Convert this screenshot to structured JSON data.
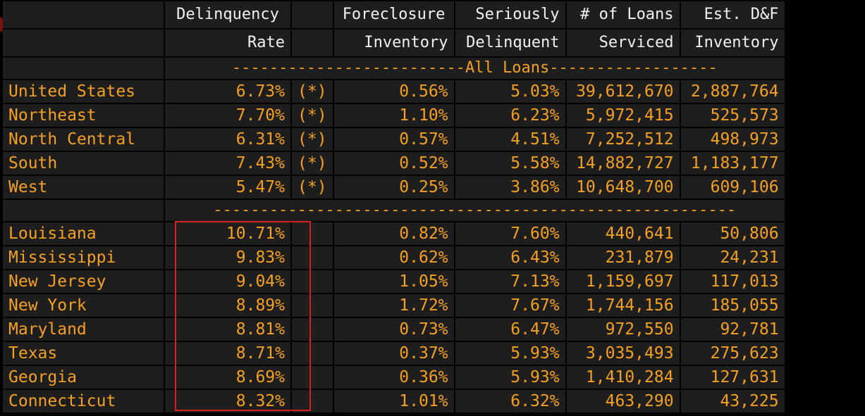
{
  "headers": {
    "col1_line1": "Delinquency",
    "col1_line2": "Rate",
    "col3_line1": "Foreclosure",
    "col3_line2": "Inventory",
    "col4_line1": "Seriously",
    "col4_line2": "Delinquent",
    "col5_line1": "# of Loans",
    "col5_line2": "Serviced",
    "col6_line1": "Est. D&F",
    "col6_line2": "Inventory"
  },
  "section_all_loans": "-------------------------All Loans------------------",
  "section_states": "--------------------------------------------------------",
  "regions": [
    {
      "name": "United States",
      "delinquency_rate": "6.73%",
      "flag": "(*)",
      "foreclosure_inventory": "0.56%",
      "seriously_delinquent": "5.03%",
      "loans_serviced": "39,612,670",
      "est_df_inventory": "2,887,764"
    },
    {
      "name": "Northeast",
      "delinquency_rate": "7.70%",
      "flag": "(*)",
      "foreclosure_inventory": "1.10%",
      "seriously_delinquent": "6.23%",
      "loans_serviced": "5,972,415",
      "est_df_inventory": "525,573"
    },
    {
      "name": "North Central",
      "delinquency_rate": "6.31%",
      "flag": "(*)",
      "foreclosure_inventory": "0.57%",
      "seriously_delinquent": "4.51%",
      "loans_serviced": "7,252,512",
      "est_df_inventory": "498,973"
    },
    {
      "name": "South",
      "delinquency_rate": "7.43%",
      "flag": "(*)",
      "foreclosure_inventory": "0.52%",
      "seriously_delinquent": "5.58%",
      "loans_serviced": "14,882,727",
      "est_df_inventory": "1,183,177"
    },
    {
      "name": "West",
      "delinquency_rate": "5.47%",
      "flag": "(*)",
      "foreclosure_inventory": "0.25%",
      "seriously_delinquent": "3.86%",
      "loans_serviced": "10,648,700",
      "est_df_inventory": "609,106"
    }
  ],
  "states": [
    {
      "name": "Louisiana",
      "delinquency_rate": "10.71%",
      "foreclosure_inventory": "0.82%",
      "seriously_delinquent": "7.60%",
      "loans_serviced": "440,641",
      "est_df_inventory": "50,806"
    },
    {
      "name": "Mississippi",
      "delinquency_rate": "9.83%",
      "foreclosure_inventory": "0.62%",
      "seriously_delinquent": "6.43%",
      "loans_serviced": "231,879",
      "est_df_inventory": "24,231"
    },
    {
      "name": "New Jersey",
      "delinquency_rate": "9.04%",
      "foreclosure_inventory": "1.05%",
      "seriously_delinquent": "7.13%",
      "loans_serviced": "1,159,697",
      "est_df_inventory": "117,013"
    },
    {
      "name": "New York",
      "delinquency_rate": "8.89%",
      "foreclosure_inventory": "1.72%",
      "seriously_delinquent": "7.67%",
      "loans_serviced": "1,744,156",
      "est_df_inventory": "185,055"
    },
    {
      "name": "Maryland",
      "delinquency_rate": "8.81%",
      "foreclosure_inventory": "0.73%",
      "seriously_delinquent": "6.47%",
      "loans_serviced": "972,550",
      "est_df_inventory": "92,781"
    },
    {
      "name": "Texas",
      "delinquency_rate": "8.71%",
      "foreclosure_inventory": "0.37%",
      "seriously_delinquent": "5.93%",
      "loans_serviced": "3,035,493",
      "est_df_inventory": "275,623"
    },
    {
      "name": "Georgia",
      "delinquency_rate": "8.69%",
      "foreclosure_inventory": "0.36%",
      "seriously_delinquent": "5.93%",
      "loans_serviced": "1,410,284",
      "est_df_inventory": "127,631"
    },
    {
      "name": "Connecticut",
      "delinquency_rate": "8.32%",
      "foreclosure_inventory": "1.01%",
      "seriously_delinquent": "6.32%",
      "loans_serviced": "463,290",
      "est_df_inventory": "43,225"
    }
  ],
  "colors": {
    "background": "#000000",
    "cell": "#1e1e1e",
    "header_text": "#f2f2f2",
    "value_text": "#f5a020",
    "highlight_border": "#d81d24"
  }
}
